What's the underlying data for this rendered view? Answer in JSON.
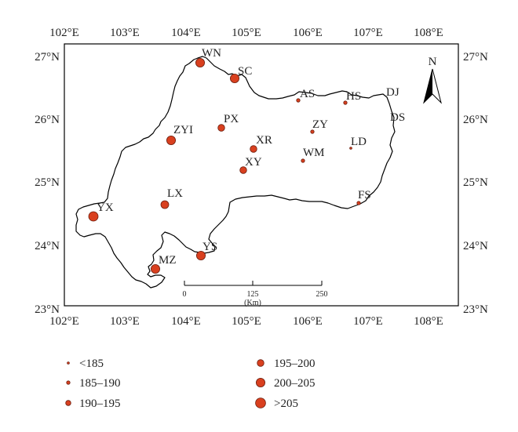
{
  "map": {
    "longitude_ticks": [
      "102°E",
      "103°E",
      "104°E",
      "105°E",
      "106°E",
      "107°E",
      "108°E"
    ],
    "latitude_ticks": [
      "27°N",
      "26°N",
      "25°N",
      "24°N",
      "23°N"
    ],
    "north_arrow_label": "N",
    "scale_bar": {
      "tick_labels": [
        "0",
        "125",
        "250"
      ],
      "unit": "(Km)"
    },
    "colors": {
      "marker_fill": "#d9401f",
      "marker_stroke": "#6b1f10",
      "outline": "#000000"
    }
  },
  "stations": [
    {
      "code": "WN",
      "lon": 104.25,
      "lat": 26.87,
      "class": ">205"
    },
    {
      "code": "SC",
      "lon": 104.82,
      "lat": 26.62,
      "class": ">205"
    },
    {
      "code": "AS",
      "lon": 105.93,
      "lat": 26.25,
      "class": "185–190"
    },
    {
      "code": "HS",
      "lon": 106.67,
      "lat": 26.22,
      "class": "185–190"
    },
    {
      "code": "DJ",
      "lon": null,
      "lat": null,
      "class": null
    },
    {
      "code": "DS",
      "lon": null,
      "lat": null,
      "class": null
    },
    {
      "code": "PX",
      "lon": 104.62,
      "lat": 25.86,
      "class": "195–200"
    },
    {
      "code": "ZY",
      "lon": 106.1,
      "lat": 25.8,
      "class": "185–190"
    },
    {
      "code": "ZYI",
      "lon": 103.8,
      "lat": 25.66,
      "class": "200–205"
    },
    {
      "code": "XR",
      "lon": 105.18,
      "lat": 25.52,
      "class": "195–200"
    },
    {
      "code": "LD",
      "lon": 106.72,
      "lat": 25.55,
      "class": "<185"
    },
    {
      "code": "WM",
      "lon": 105.98,
      "lat": 25.36,
      "class": "185–190"
    },
    {
      "code": "XY",
      "lon": 105.0,
      "lat": 25.2,
      "class": "195–200"
    },
    {
      "code": "LX",
      "lon": 103.7,
      "lat": 24.65,
      "class": "195–200"
    },
    {
      "code": "FS",
      "lon": 106.85,
      "lat": 24.67,
      "class": "185–190"
    },
    {
      "code": "YX",
      "lon": 102.53,
      "lat": 24.46,
      "class": ">205"
    },
    {
      "code": "YS",
      "lon": 104.25,
      "lat": 23.83,
      "class": "200–205"
    },
    {
      "code": "MZ",
      "lon": 103.52,
      "lat": 23.64,
      "class": "200–205"
    }
  ],
  "legend": [
    {
      "label": "<185"
    },
    {
      "label": "185–190"
    },
    {
      "label": "190–195"
    },
    {
      "label": "195–200"
    },
    {
      "label": "200–205"
    },
    {
      "label": ">205"
    }
  ]
}
